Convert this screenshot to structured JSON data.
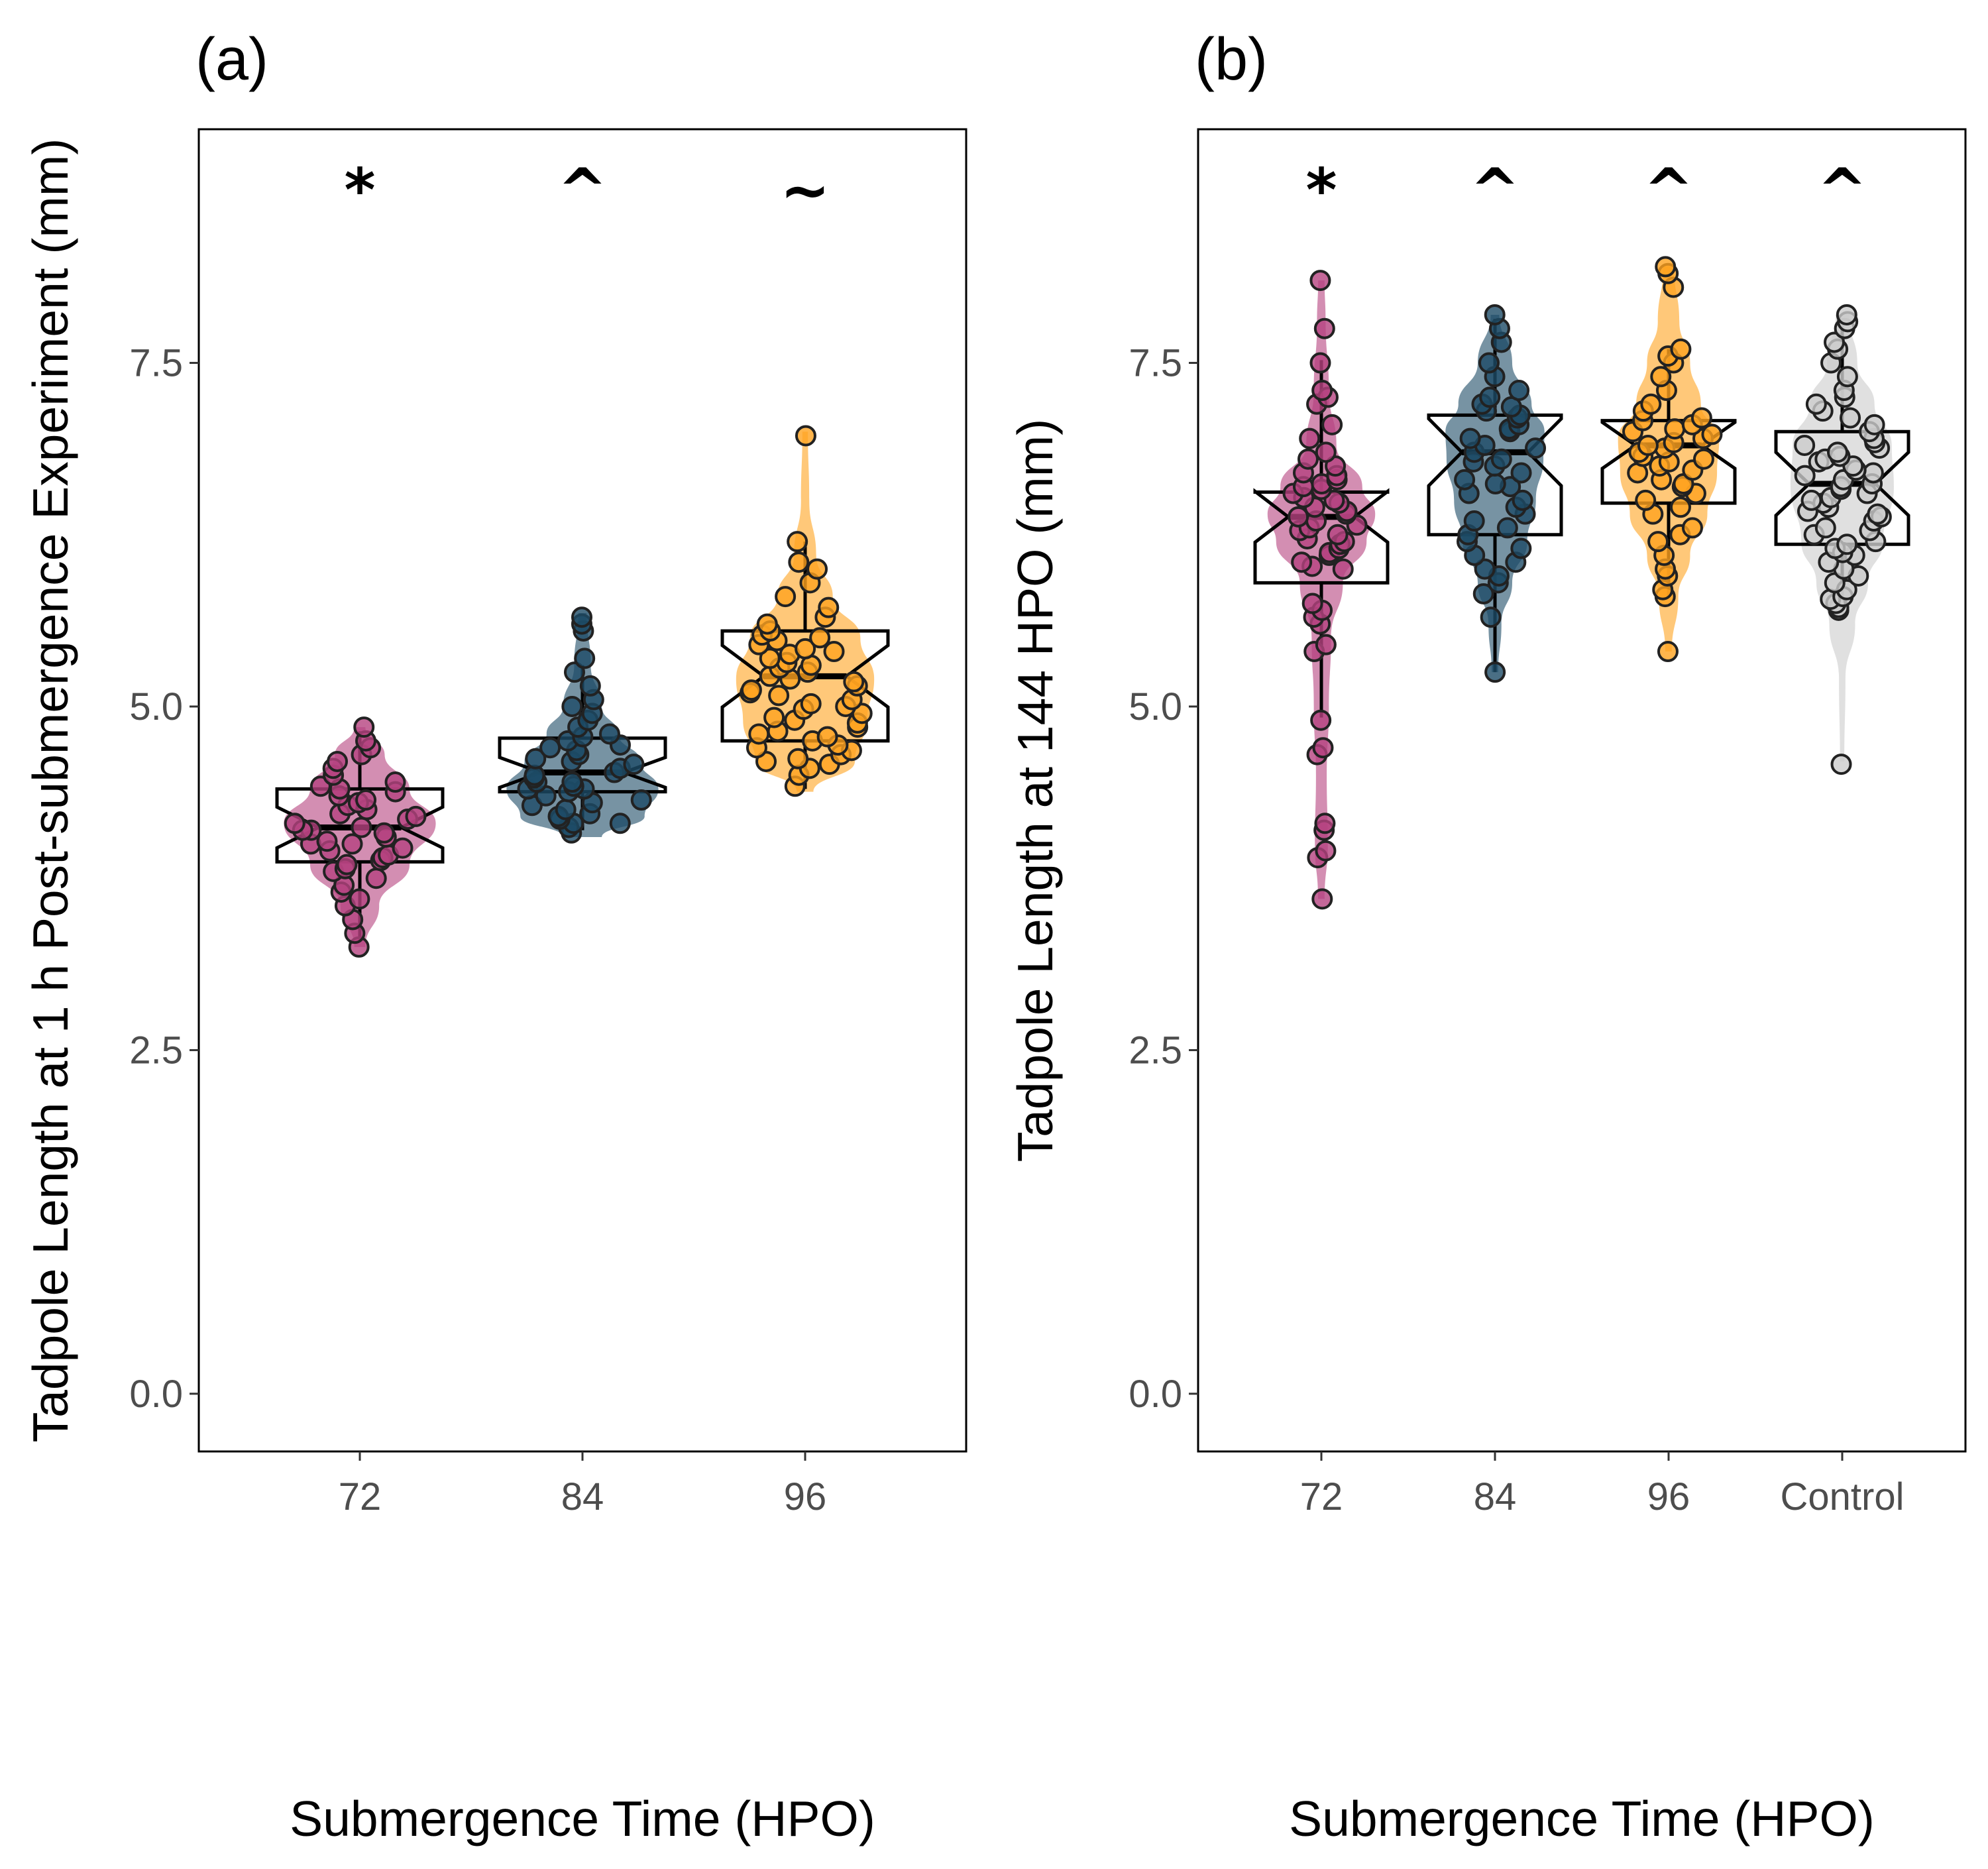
{
  "chart_data": [
    {
      "panel_label": "(a)",
      "type": "violin+box+scatter",
      "xlabel": "Submergence Time (HPO)",
      "ylabel": "Tadpole Length at 1 h Post-submergence Experiment (mm)",
      "ylim": [
        -0.42,
        9.2
      ],
      "yticks": [
        "0.0",
        "2.5",
        "5.0",
        "7.5"
      ],
      "grid": false,
      "categories": [
        {
          "label": "72",
          "annotation": "*",
          "color": "#b5427f",
          "box": {
            "min": 3.3,
            "q1": 3.87,
            "median": 4.12,
            "q3": 4.4,
            "max": 4.82
          },
          "violin": [
            [
              3.25,
              0.04
            ],
            [
              3.55,
              0.14
            ],
            [
              3.85,
              0.36
            ],
            [
              4.15,
              0.55
            ],
            [
              4.4,
              0.36
            ],
            [
              4.65,
              0.18
            ],
            [
              4.85,
              0.04
            ]
          ],
          "points": [
            3.25,
            3.35,
            3.45,
            3.55,
            3.6,
            3.65,
            3.7,
            3.75,
            3.8,
            3.82,
            3.85,
            3.88,
            3.9,
            3.92,
            3.95,
            3.97,
            4.0,
            4.0,
            4.02,
            4.05,
            4.08,
            4.1,
            4.1,
            4.12,
            4.15,
            4.18,
            4.2,
            4.22,
            4.25,
            4.28,
            4.3,
            4.32,
            4.35,
            4.38,
            4.4,
            4.42,
            4.45,
            4.5,
            4.55,
            4.6,
            4.65,
            4.7,
            4.75,
            4.85
          ]
        },
        {
          "label": "84",
          "annotation": "^",
          "color": "#1d4b66",
          "box": {
            "min": 4.1,
            "q1": 4.38,
            "median": 4.52,
            "q3": 4.77,
            "max": 5.3
          },
          "violin": [
            [
              4.05,
              0.14
            ],
            [
              4.2,
              0.45
            ],
            [
              4.4,
              0.55
            ],
            [
              4.6,
              0.42
            ],
            [
              4.8,
              0.26
            ],
            [
              5.0,
              0.14
            ],
            [
              5.3,
              0.06
            ],
            [
              5.68,
              0.03
            ]
          ],
          "points": [
            4.08,
            4.12,
            4.15,
            4.15,
            4.18,
            4.2,
            4.22,
            4.25,
            4.28,
            4.3,
            4.32,
            4.35,
            4.38,
            4.4,
            4.4,
            4.42,
            4.45,
            4.45,
            4.48,
            4.5,
            4.52,
            4.55,
            4.58,
            4.6,
            4.62,
            4.65,
            4.68,
            4.7,
            4.72,
            4.75,
            4.78,
            4.8,
            4.85,
            4.9,
            4.95,
            5.0,
            5.05,
            5.15,
            5.25,
            5.35,
            5.55,
            5.6,
            5.65
          ]
        },
        {
          "label": "96",
          "annotation": "~",
          "color": "#ffa31f",
          "box": {
            "min": 4.4,
            "q1": 4.75,
            "median": 5.22,
            "q3": 5.55,
            "max": 6.2
          },
          "violin": [
            [
              4.38,
              0.06
            ],
            [
              4.6,
              0.36
            ],
            [
              4.9,
              0.45
            ],
            [
              5.2,
              0.5
            ],
            [
              5.5,
              0.4
            ],
            [
              5.8,
              0.2
            ],
            [
              6.1,
              0.08
            ],
            [
              6.5,
              0.03
            ],
            [
              7.0,
              0.02
            ]
          ],
          "points": [
            4.42,
            4.5,
            4.55,
            4.58,
            4.6,
            4.62,
            4.65,
            4.68,
            4.7,
            4.72,
            4.75,
            4.78,
            4.8,
            4.82,
            4.85,
            4.88,
            4.9,
            4.92,
            4.95,
            4.98,
            5.0,
            5.02,
            5.05,
            5.08,
            5.1,
            5.12,
            5.15,
            5.18,
            5.2,
            5.22,
            5.25,
            5.28,
            5.3,
            5.32,
            5.35,
            5.38,
            5.4,
            5.42,
            5.45,
            5.48,
            5.5,
            5.52,
            5.55,
            5.6,
            5.65,
            5.72,
            5.8,
            5.9,
            6.0,
            6.05,
            6.2,
            6.97
          ]
        }
      ]
    },
    {
      "panel_label": "(b)",
      "type": "violin+box+scatter",
      "xlabel": "Submergence Time (HPO)",
      "ylabel": "Tadpole Length at 144 HPO (mm)",
      "ylim": [
        -0.42,
        9.2
      ],
      "yticks": [
        "0.0",
        "2.5",
        "5.0",
        "7.5"
      ],
      "grid": false,
      "categories": [
        {
          "label": "72",
          "annotation": "*",
          "color": "#b5427f",
          "box": {
            "min": 4.92,
            "q1": 5.9,
            "median": 6.38,
            "q3": 6.56,
            "max": 7.52
          },
          "violin": [
            [
              3.6,
              0.03
            ],
            [
              4.0,
              0.06
            ],
            [
              4.5,
              0.05
            ],
            [
              5.0,
              0.07
            ],
            [
              5.5,
              0.09
            ],
            [
              5.9,
              0.2
            ],
            [
              6.2,
              0.42
            ],
            [
              6.4,
              0.5
            ],
            [
              6.6,
              0.38
            ],
            [
              6.9,
              0.14
            ],
            [
              7.3,
              0.07
            ],
            [
              7.8,
              0.04
            ],
            [
              8.1,
              0.03
            ]
          ],
          "points": [
            3.6,
            3.9,
            3.95,
            4.1,
            4.15,
            4.65,
            4.7,
            4.9,
            5.4,
            5.45,
            5.6,
            5.65,
            5.7,
            5.75,
            6.0,
            6.02,
            6.05,
            6.1,
            6.12,
            6.15,
            6.18,
            6.2,
            6.22,
            6.25,
            6.28,
            6.3,
            6.32,
            6.35,
            6.38,
            6.4,
            6.42,
            6.45,
            6.48,
            6.5,
            6.52,
            6.55,
            6.58,
            6.6,
            6.62,
            6.65,
            6.68,
            6.7,
            6.75,
            6.8,
            6.85,
            6.95,
            7.05,
            7.2,
            7.25,
            7.3,
            7.5,
            7.75,
            8.1
          ]
        },
        {
          "label": "84",
          "annotation": "^",
          "color": "#1d4b66",
          "box": {
            "min": 5.25,
            "q1": 6.25,
            "median": 6.85,
            "q3": 7.12,
            "max": 7.82
          },
          "violin": [
            [
              5.25,
              0.03
            ],
            [
              5.6,
              0.06
            ],
            [
              5.9,
              0.16
            ],
            [
              6.2,
              0.3
            ],
            [
              6.5,
              0.38
            ],
            [
              6.8,
              0.45
            ],
            [
              7.0,
              0.46
            ],
            [
              7.2,
              0.34
            ],
            [
              7.5,
              0.16
            ],
            [
              7.85,
              0.04
            ]
          ],
          "points": [
            5.25,
            5.65,
            5.82,
            5.9,
            5.95,
            6.0,
            6.05,
            6.1,
            6.15,
            6.2,
            6.25,
            6.3,
            6.35,
            6.4,
            6.45,
            6.5,
            6.55,
            6.6,
            6.62,
            6.65,
            6.7,
            6.75,
            6.78,
            6.8,
            6.85,
            6.88,
            6.9,
            6.95,
            7.0,
            7.02,
            7.05,
            7.1,
            7.12,
            7.15,
            7.18,
            7.2,
            7.25,
            7.3,
            7.4,
            7.5,
            7.65,
            7.75,
            7.85
          ]
        },
        {
          "label": "96",
          "annotation": "^",
          "color": "#ffa31f",
          "box": {
            "min": 5.8,
            "q1": 6.48,
            "median": 6.9,
            "q3": 7.08,
            "max": 7.6
          },
          "violin": [
            [
              5.4,
              0.03
            ],
            [
              5.8,
              0.09
            ],
            [
              6.1,
              0.2
            ],
            [
              6.4,
              0.36
            ],
            [
              6.7,
              0.45
            ],
            [
              6.95,
              0.47
            ],
            [
              7.2,
              0.3
            ],
            [
              7.5,
              0.2
            ],
            [
              7.8,
              0.1
            ],
            [
              8.2,
              0.05
            ]
          ],
          "points": [
            5.4,
            5.8,
            5.85,
            5.95,
            6.0,
            6.1,
            6.2,
            6.25,
            6.3,
            6.4,
            6.45,
            6.5,
            6.55,
            6.6,
            6.62,
            6.65,
            6.7,
            6.72,
            6.75,
            6.78,
            6.8,
            6.82,
            6.85,
            6.88,
            6.9,
            6.92,
            6.95,
            6.98,
            7.0,
            7.02,
            7.05,
            7.08,
            7.1,
            7.15,
            7.2,
            7.3,
            7.4,
            7.5,
            7.55,
            7.6,
            8.05,
            8.15,
            8.2
          ]
        },
        {
          "label": "Control",
          "annotation": "^",
          "color": "#cccccc",
          "box": {
            "min": 5.68,
            "q1": 6.18,
            "median": 6.62,
            "q3": 7.0,
            "max": 7.8
          },
          "violin": [
            [
              4.6,
              0.02
            ],
            [
              5.2,
              0.03
            ],
            [
              5.6,
              0.12
            ],
            [
              5.9,
              0.24
            ],
            [
              6.2,
              0.38
            ],
            [
              6.6,
              0.48
            ],
            [
              6.9,
              0.46
            ],
            [
              7.2,
              0.3
            ],
            [
              7.5,
              0.14
            ],
            [
              7.85,
              0.06
            ]
          ],
          "points": [
            4.58,
            5.7,
            5.72,
            5.75,
            5.78,
            5.8,
            5.85,
            5.9,
            5.95,
            6.0,
            6.05,
            6.1,
            6.12,
            6.15,
            6.18,
            6.2,
            6.25,
            6.28,
            6.3,
            6.35,
            6.38,
            6.4,
            6.42,
            6.45,
            6.48,
            6.5,
            6.52,
            6.55,
            6.58,
            6.6,
            6.62,
            6.65,
            6.68,
            6.7,
            6.72,
            6.75,
            6.78,
            6.8,
            6.82,
            6.85,
            6.88,
            6.9,
            6.92,
            6.95,
            7.0,
            7.05,
            7.1,
            7.15,
            7.2,
            7.25,
            7.3,
            7.4,
            7.5,
            7.6,
            7.65,
            7.75,
            7.8,
            7.85
          ]
        }
      ]
    }
  ]
}
